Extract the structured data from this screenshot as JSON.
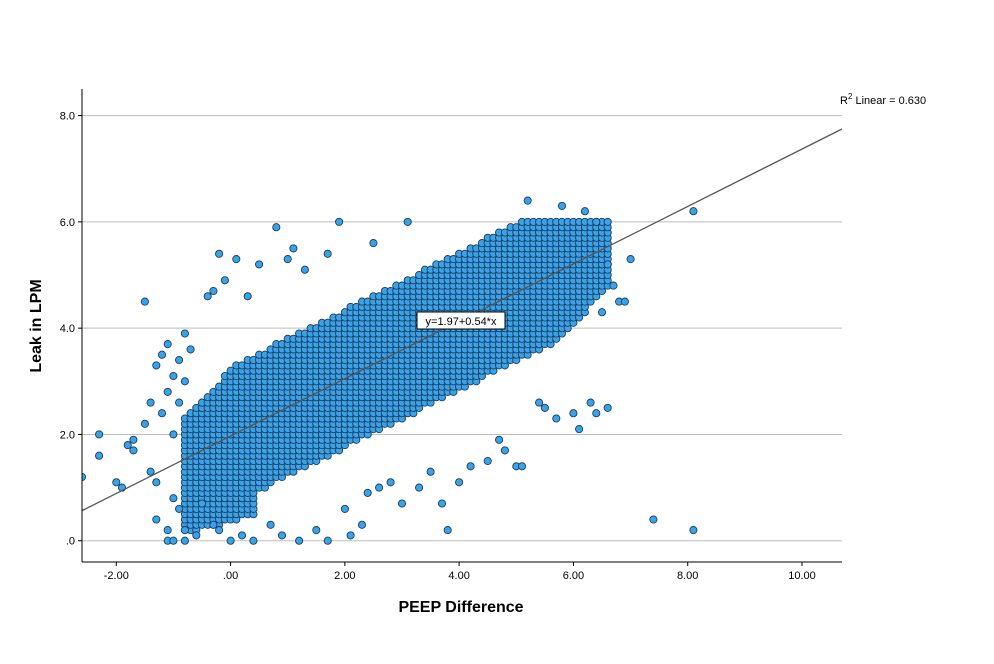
{
  "chart_data": {
    "type": "scatter",
    "xlabel": "PEEP Difference",
    "ylabel": "Leak in LPM",
    "xlim": [
      -2.6,
      10.7
    ],
    "ylim": [
      -0.4,
      8.5
    ],
    "x_ticks": [
      -2,
      0,
      2,
      4,
      6,
      8,
      10
    ],
    "x_tick_labels": [
      "-2.00",
      ".00",
      "2.00",
      "4.00",
      "6.00",
      "8.00",
      "10.00"
    ],
    "y_ticks": [
      0,
      2,
      4,
      6,
      8
    ],
    "y_tick_labels": [
      ".0",
      "2.0",
      "4.0",
      "6.0",
      "8.0"
    ],
    "grid": "horizontal",
    "point_color": "#3aa3e6",
    "point_edge_color": "#1a3d66",
    "fit_line": {
      "intercept": 1.97,
      "slope": 0.54,
      "color": "#555555"
    },
    "equation_label": "y=1.97+0.54*x",
    "r2_label_prefix": "R",
    "r2_label_sup": "2",
    "r2_label_rest": " Linear = 0.630",
    "dense_region": {
      "description_note": "",
      "x_min": -0.8,
      "x_max": 6.6,
      "band_half_width": 1.25
    },
    "points": [
      [
        -2.6,
        1.2
      ],
      [
        -2.3,
        2.0
      ],
      [
        -2.3,
        1.6
      ],
      [
        -2.0,
        1.1
      ],
      [
        -1.9,
        1.0
      ],
      [
        -1.8,
        1.8
      ],
      [
        -1.7,
        1.9
      ],
      [
        -1.7,
        1.7
      ],
      [
        -1.5,
        4.5
      ],
      [
        -1.5,
        2.2
      ],
      [
        -1.4,
        2.6
      ],
      [
        -1.4,
        1.3
      ],
      [
        -1.3,
        3.3
      ],
      [
        -1.3,
        1.1
      ],
      [
        -1.2,
        3.5
      ],
      [
        -1.2,
        2.4
      ],
      [
        -1.1,
        3.7
      ],
      [
        -1.1,
        2.8
      ],
      [
        -1.1,
        0.2
      ],
      [
        -1.1,
        0.0
      ],
      [
        -1.0,
        3.1
      ],
      [
        -1.0,
        2.0
      ],
      [
        -1.0,
        0.8
      ],
      [
        -1.0,
        0.0
      ],
      [
        -0.9,
        3.4
      ],
      [
        -0.9,
        2.6
      ],
      [
        -0.9,
        0.6
      ],
      [
        -0.8,
        3.9
      ],
      [
        -0.8,
        3.0
      ],
      [
        -0.8,
        0.2
      ],
      [
        -0.8,
        0.0
      ],
      [
        -1.3,
        0.4
      ],
      [
        -0.7,
        3.6
      ],
      [
        -0.6,
        0.1
      ],
      [
        -0.5,
        0.7
      ],
      [
        -0.4,
        4.6
      ],
      [
        -0.3,
        4.7
      ],
      [
        -0.3,
        0.3
      ],
      [
        -0.2,
        5.4
      ],
      [
        -0.2,
        0.2
      ],
      [
        -0.1,
        4.9
      ],
      [
        0.0,
        0.0
      ],
      [
        0.1,
        5.3
      ],
      [
        0.2,
        0.1
      ],
      [
        0.3,
        4.6
      ],
      [
        0.4,
        0.0
      ],
      [
        0.5,
        5.2
      ],
      [
        0.7,
        0.3
      ],
      [
        0.8,
        5.9
      ],
      [
        0.9,
        0.1
      ],
      [
        1.0,
        5.3
      ],
      [
        1.1,
        5.5
      ],
      [
        1.2,
        0.0
      ],
      [
        1.3,
        5.1
      ],
      [
        1.5,
        0.2
      ],
      [
        1.7,
        5.4
      ],
      [
        1.7,
        0.0
      ],
      [
        1.9,
        6.0
      ],
      [
        2.0,
        0.6
      ],
      [
        2.1,
        0.1
      ],
      [
        2.3,
        0.3
      ],
      [
        2.4,
        0.9
      ],
      [
        2.5,
        5.6
      ],
      [
        2.6,
        1.0
      ],
      [
        2.8,
        1.1
      ],
      [
        3.0,
        0.7
      ],
      [
        3.1,
        6.0
      ],
      [
        3.3,
        1.0
      ],
      [
        3.5,
        1.3
      ],
      [
        3.7,
        0.7
      ],
      [
        3.8,
        0.2
      ],
      [
        4.0,
        1.1
      ],
      [
        4.2,
        1.4
      ],
      [
        4.5,
        1.5
      ],
      [
        4.7,
        1.9
      ],
      [
        4.8,
        1.7
      ],
      [
        5.0,
        1.4
      ],
      [
        5.1,
        1.4
      ],
      [
        5.2,
        6.4
      ],
      [
        5.4,
        2.6
      ],
      [
        5.5,
        2.5
      ],
      [
        5.7,
        2.3
      ],
      [
        5.8,
        6.3
      ],
      [
        6.0,
        2.4
      ],
      [
        6.1,
        2.1
      ],
      [
        6.3,
        2.6
      ],
      [
        6.4,
        2.4
      ],
      [
        6.6,
        2.5
      ],
      [
        6.5,
        4.3
      ],
      [
        6.6,
        5.2
      ],
      [
        6.7,
        4.8
      ],
      [
        6.8,
        4.5
      ],
      [
        6.9,
        4.5
      ],
      [
        7.0,
        5.3
      ],
      [
        6.2,
        6.2
      ],
      [
        6.4,
        6.0
      ],
      [
        7.4,
        0.4
      ],
      [
        8.1,
        0.2
      ],
      [
        8.1,
        6.2
      ]
    ]
  }
}
